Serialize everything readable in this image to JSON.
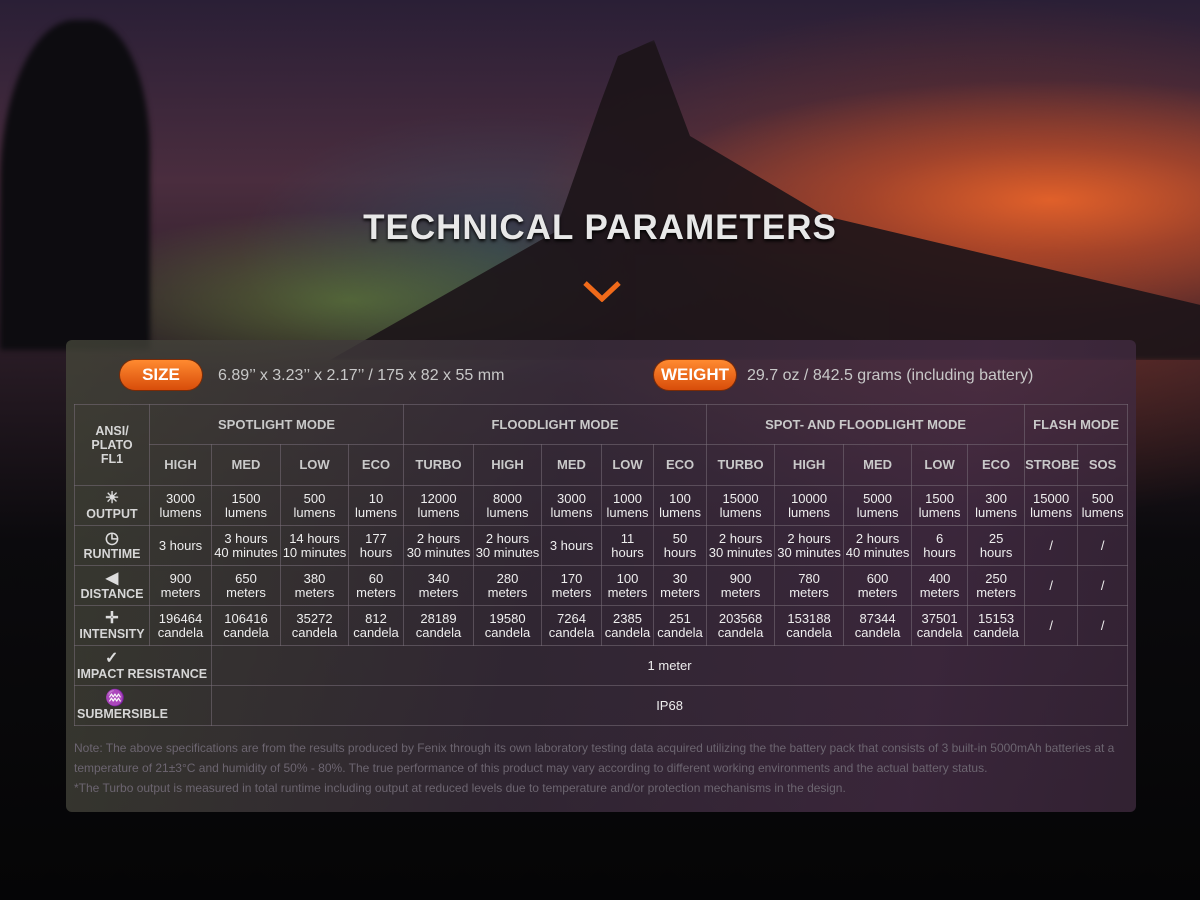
{
  "title": "TECHNICAL PARAMETERS",
  "size": {
    "label": "SIZE",
    "value": "6.89’’ x 3.23’’ x 2.17’’ / 175 x 82 x 55 mm"
  },
  "weight": {
    "label": "WEIGHT",
    "value": "29.7 oz / 842.5 grams (including battery)"
  },
  "colors": {
    "accent": "#f06a1a"
  },
  "table": {
    "corner": [
      "ANSI/",
      "PLATO",
      "FL1"
    ],
    "groups": [
      {
        "label": "SPOTLIGHT MODE",
        "span": 4
      },
      {
        "label": "FLOODLIGHT MODE",
        "span": 5
      },
      {
        "label": "SPOT- AND FLOODLIGHT MODE",
        "span": 5
      },
      {
        "label": "FLASH MODE",
        "span": 2
      }
    ],
    "modes": [
      "HIGH",
      "MED",
      "LOW",
      "ECO",
      "TURBO",
      "HIGH",
      "MED",
      "LOW",
      "ECO",
      "TURBO",
      "HIGH",
      "MED",
      "LOW",
      "ECO",
      "STROBE",
      "SOS"
    ],
    "rows": [
      {
        "label": "OUTPUT",
        "icon": "light-burst-icon",
        "values": [
          [
            "3000",
            "lumens"
          ],
          [
            "1500",
            "lumens"
          ],
          [
            "500",
            "lumens"
          ],
          [
            "10",
            "lumens"
          ],
          [
            "12000",
            "lumens"
          ],
          [
            "8000",
            "lumens"
          ],
          [
            "3000",
            "lumens"
          ],
          [
            "1000",
            "lumens"
          ],
          [
            "100",
            "lumens"
          ],
          [
            "15000",
            "lumens"
          ],
          [
            "10000",
            "lumens"
          ],
          [
            "5000",
            "lumens"
          ],
          [
            "1500",
            "lumens"
          ],
          [
            "300",
            "lumens"
          ],
          [
            "15000",
            "lumens"
          ],
          [
            "500",
            "lumens"
          ]
        ]
      },
      {
        "label": "RUNTIME",
        "icon": "clock-icon",
        "values": [
          [
            "3 hours"
          ],
          [
            "3 hours",
            "40 minutes"
          ],
          [
            "14 hours",
            "10 minutes"
          ],
          [
            "177",
            "hours"
          ],
          [
            "2 hours",
            "30 minutes"
          ],
          [
            "2 hours",
            "30 minutes"
          ],
          [
            "3 hours"
          ],
          [
            "11",
            "hours"
          ],
          [
            "50",
            "hours"
          ],
          [
            "2 hours",
            "30 minutes"
          ],
          [
            "2 hours",
            "30 minutes"
          ],
          [
            "2 hours",
            "40 minutes"
          ],
          [
            "6",
            "hours"
          ],
          [
            "25",
            "hours"
          ],
          [
            "/"
          ],
          [
            "/"
          ]
        ]
      },
      {
        "label": "DISTANCE",
        "icon": "beam-distance-icon",
        "values": [
          [
            "900",
            "meters"
          ],
          [
            "650",
            "meters"
          ],
          [
            "380",
            "meters"
          ],
          [
            "60",
            "meters"
          ],
          [
            "340",
            "meters"
          ],
          [
            "280",
            "meters"
          ],
          [
            "170",
            "meters"
          ],
          [
            "100",
            "meters"
          ],
          [
            "30",
            "meters"
          ],
          [
            "900",
            "meters"
          ],
          [
            "780",
            "meters"
          ],
          [
            "600",
            "meters"
          ],
          [
            "400",
            "meters"
          ],
          [
            "250",
            "meters"
          ],
          [
            "/"
          ],
          [
            "/"
          ]
        ]
      },
      {
        "label": "INTENSITY",
        "icon": "crosshair-icon",
        "values": [
          [
            "196464",
            "candela"
          ],
          [
            "106416",
            "candela"
          ],
          [
            "35272",
            "candela"
          ],
          [
            "812",
            "candela"
          ],
          [
            "28189",
            "candela"
          ],
          [
            "19580",
            "candela"
          ],
          [
            "7264",
            "candela"
          ],
          [
            "2385",
            "candela"
          ],
          [
            "251",
            "candela"
          ],
          [
            "203568",
            "candela"
          ],
          [
            "153188",
            "candela"
          ],
          [
            "87344",
            "candela"
          ],
          [
            "37501",
            "candela"
          ],
          [
            "15153",
            "candela"
          ],
          [
            "/"
          ],
          [
            "/"
          ]
        ]
      }
    ],
    "impact": {
      "label": "IMPACT RESISTANCE",
      "icon": "impact-icon",
      "value": "1 meter"
    },
    "submersible": {
      "label": "SUBMERSIBLE",
      "icon": "water-drop-icon",
      "value": "IP68"
    }
  },
  "notes": [
    "Note: The above specifications are from the results produced by Fenix through its own laboratory testing data acquired utilizing the the battery pack that consists of 3 built-in 5000mAh batteries at a temperature of 21±3°C and humidity of 50% - 80%. The true performance of this product may vary according to different working environments and the actual battery status.",
    "*The Turbo output is measured in total runtime including output at reduced levels due to temperature and/or protection mechanisms in the design."
  ]
}
